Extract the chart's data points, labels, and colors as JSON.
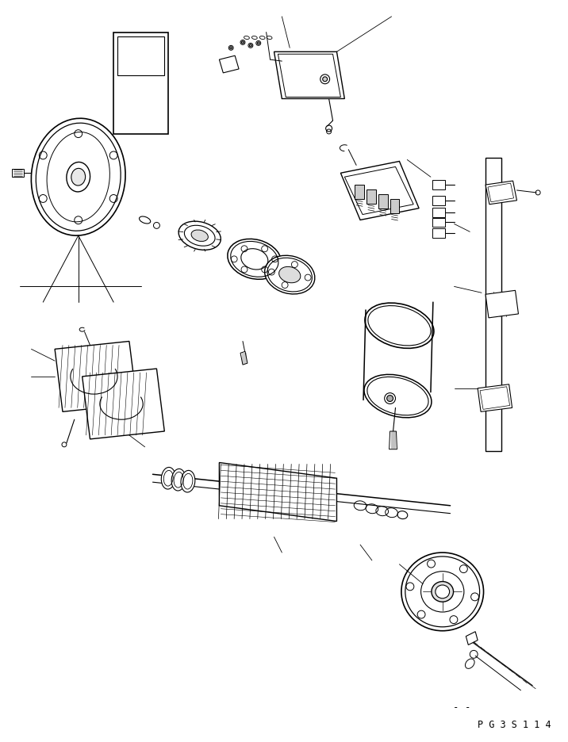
{
  "background_color": "#ffffff",
  "page_id": "PG3S114",
  "fig_width": 7.16,
  "fig_height": 9.36,
  "dpi": 100,
  "line_color": "#000000",
  "line_width": 0.8,
  "watermark_text": "- -",
  "page_code": "P G 3 S 1 1 4"
}
